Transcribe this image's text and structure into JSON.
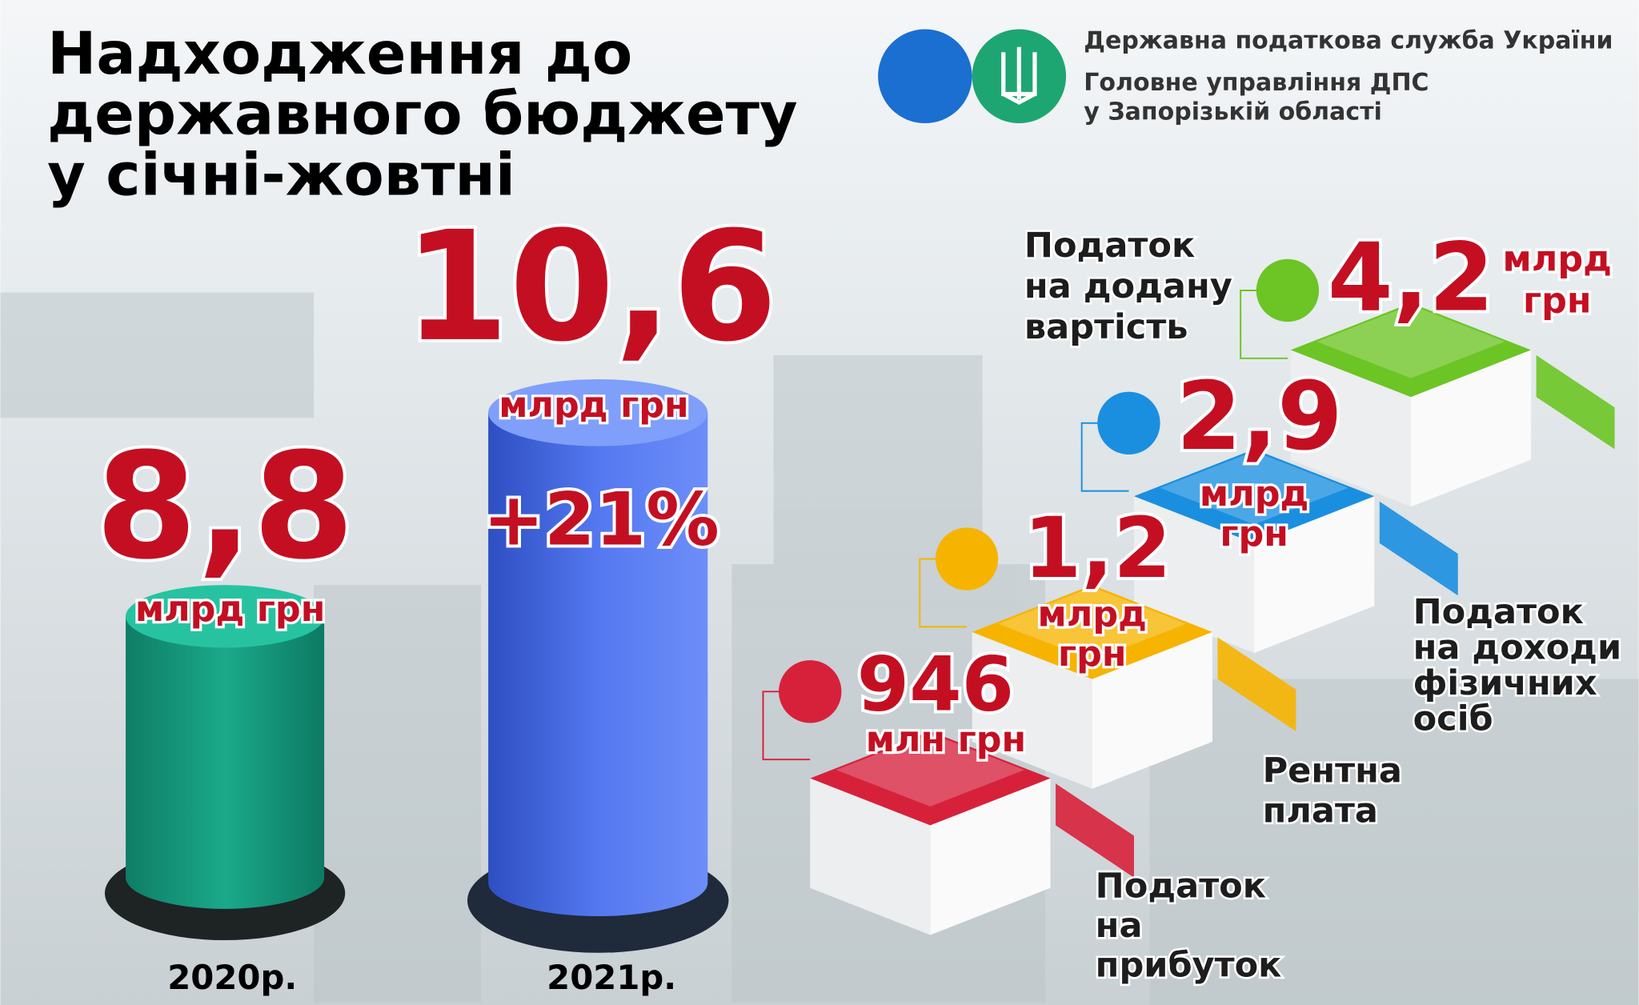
{
  "header": {
    "title": [
      "Надходження до",
      "державного бюджету",
      "у січні-жовтні"
    ],
    "organization": [
      "Державна податкова служба України",
      "Головне управління ДПС",
      "у Запорізькій області"
    ]
  },
  "totals": [
    {
      "value": "8,8",
      "unit": "млрд грн",
      "year": "2020р."
    },
    {
      "value": "10,6",
      "unit": "млрд грн",
      "change": "+21%",
      "year": "2021р."
    }
  ],
  "taxes": [
    {
      "name": [
        "Податок",
        "на",
        "прибуток"
      ],
      "value": "946",
      "unit": [
        "млн грн"
      ],
      "color": "#d7213b"
    },
    {
      "name": [
        "Рентна",
        "плата"
      ],
      "value": "1,2",
      "unit": [
        "млрд",
        "грн"
      ],
      "color": "#f6b400"
    },
    {
      "name": [
        "Податок",
        "на доходи",
        "фізичних",
        "осіб"
      ],
      "value": "2,9",
      "unit": [
        "млрд",
        "грн"
      ],
      "color": "#1a8fe0"
    },
    {
      "name": [
        "Податок",
        "на додану",
        "вартість"
      ],
      "value": "4,2",
      "unit": [
        "млрд",
        "грн"
      ],
      "color": "#6cc524"
    }
  ]
}
